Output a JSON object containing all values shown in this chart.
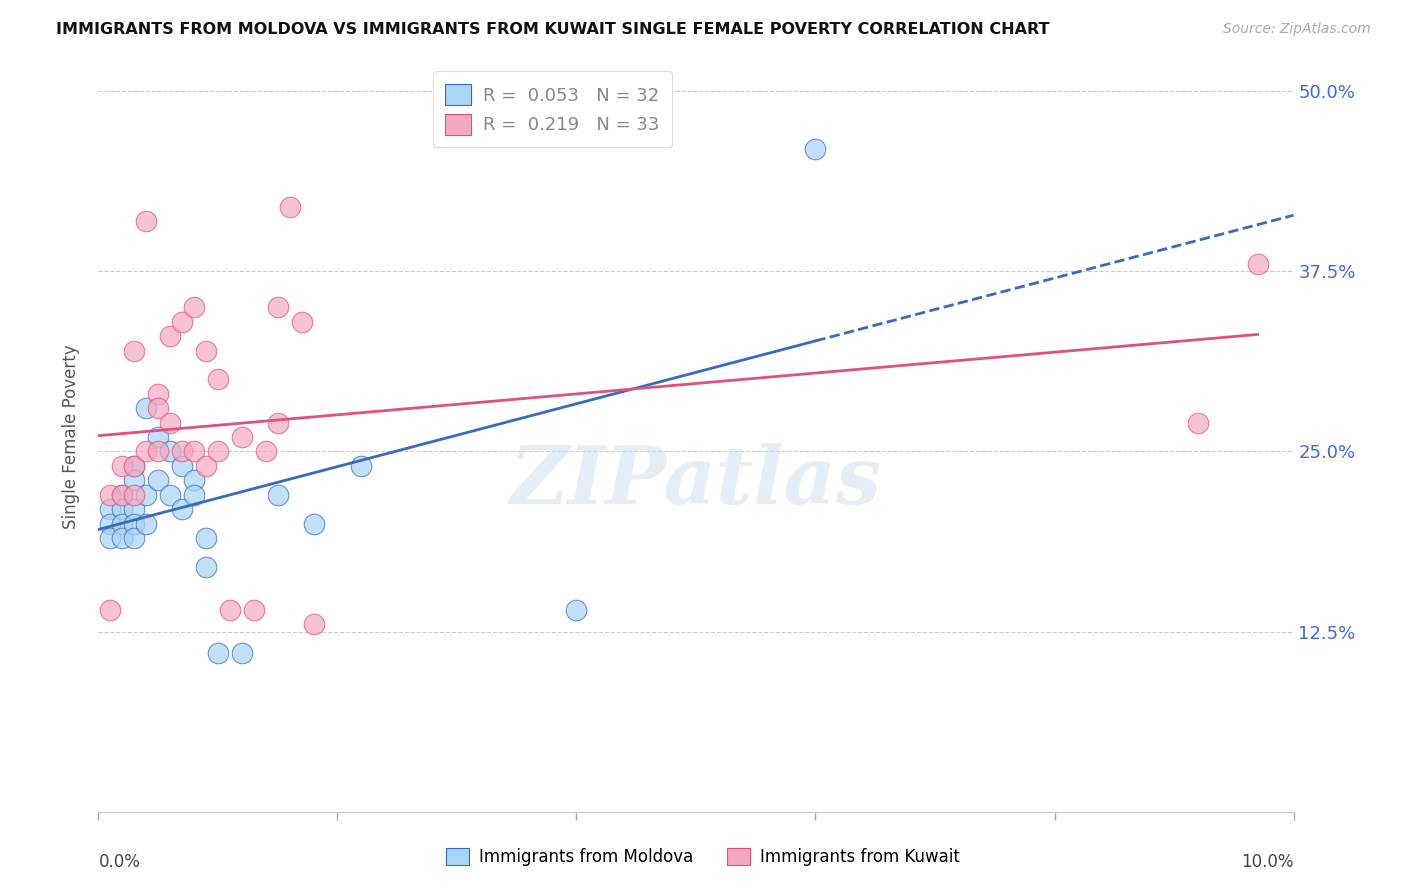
{
  "title": "IMMIGRANTS FROM MOLDOVA VS IMMIGRANTS FROM KUWAIT SINGLE FEMALE POVERTY CORRELATION CHART",
  "source": "Source: ZipAtlas.com",
  "ylabel": "Single Female Poverty",
  "ytick_vals": [
    0.125,
    0.25,
    0.375,
    0.5
  ],
  "ytick_labels": [
    "12.5%",
    "25.0%",
    "37.5%",
    "50.0%"
  ],
  "xlim": [
    0.0,
    0.1
  ],
  "ylim": [
    0.0,
    0.52
  ],
  "moldova_R": 0.053,
  "moldova_N": 32,
  "kuwait_R": 0.219,
  "kuwait_N": 33,
  "moldova_color": "#a8d4f5",
  "kuwait_color": "#f5a8c0",
  "trendline_moldova_color": "#3a6abf",
  "trendline_kuwait_color": "#e05080",
  "watermark": "ZIPatlas",
  "moldova_x": [
    0.001,
    0.001,
    0.001,
    0.002,
    0.002,
    0.002,
    0.002,
    0.003,
    0.003,
    0.003,
    0.003,
    0.003,
    0.004,
    0.004,
    0.004,
    0.005,
    0.005,
    0.006,
    0.006,
    0.007,
    0.007,
    0.008,
    0.008,
    0.009,
    0.009,
    0.01,
    0.012,
    0.015,
    0.018,
    0.022,
    0.04,
    0.06
  ],
  "moldova_y": [
    0.21,
    0.2,
    0.19,
    0.22,
    0.21,
    0.2,
    0.19,
    0.24,
    0.23,
    0.21,
    0.2,
    0.19,
    0.28,
    0.22,
    0.2,
    0.26,
    0.23,
    0.25,
    0.22,
    0.24,
    0.21,
    0.23,
    0.22,
    0.19,
    0.17,
    0.11,
    0.11,
    0.22,
    0.2,
    0.24,
    0.14,
    0.46
  ],
  "kuwait_x": [
    0.001,
    0.001,
    0.002,
    0.002,
    0.003,
    0.003,
    0.003,
    0.004,
    0.004,
    0.005,
    0.005,
    0.005,
    0.006,
    0.006,
    0.007,
    0.007,
    0.008,
    0.008,
    0.009,
    0.009,
    0.01,
    0.01,
    0.011,
    0.012,
    0.013,
    0.014,
    0.015,
    0.015,
    0.016,
    0.017,
    0.018,
    0.092,
    0.097
  ],
  "kuwait_y": [
    0.22,
    0.14,
    0.24,
    0.22,
    0.32,
    0.24,
    0.22,
    0.41,
    0.25,
    0.29,
    0.28,
    0.25,
    0.33,
    0.27,
    0.34,
    0.25,
    0.35,
    0.25,
    0.24,
    0.32,
    0.3,
    0.25,
    0.14,
    0.26,
    0.14,
    0.25,
    0.35,
    0.27,
    0.42,
    0.34,
    0.13,
    0.27,
    0.38
  ],
  "trendline_mol_x0": 0.0,
  "trendline_mol_x_solid_end": 0.06,
  "trendline_mol_x_dashed_end": 0.1,
  "trendline_kuw_x0": 0.0,
  "trendline_kuw_x_end": 0.097
}
